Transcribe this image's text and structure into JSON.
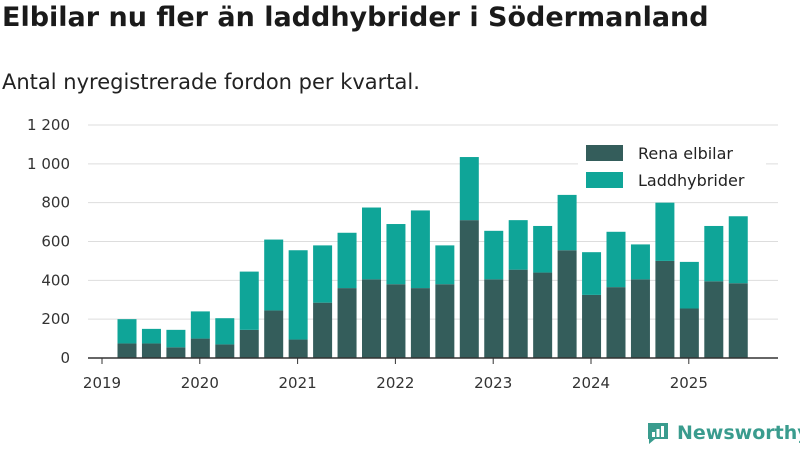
{
  "title": "Elbilar nu fler än laddhybrider i Södermanland",
  "subtitle": "Antal nyregistrerade fordon per kvartal.",
  "brand": {
    "name": "Newsworthy"
  },
  "colors": {
    "electric": "#345d5b",
    "hybrid": "#0fa598",
    "grid": "#dddddd",
    "axis": "#333333",
    "brand": "#3a9c8e"
  },
  "chart_data": {
    "type": "bar",
    "stacked": true,
    "x_tick_labels": [
      "2019",
      "2020",
      "2021",
      "2022",
      "2023",
      "2024",
      "2025"
    ],
    "y_ticks": [
      0,
      200,
      400,
      600,
      800,
      1000,
      1200
    ],
    "y_tick_labels": [
      "0",
      "200",
      "400",
      "600",
      "800",
      "1 000",
      "1 200"
    ],
    "ylim": [
      0,
      1200
    ],
    "grid": true,
    "legend_position": "top-right",
    "categories": [
      "2019 Q2",
      "2019 Q3",
      "2019 Q4",
      "2020 Q1",
      "2020 Q2",
      "2020 Q3",
      "2020 Q4",
      "2021 Q1",
      "2021 Q2",
      "2021 Q3",
      "2021 Q4",
      "2022 Q1",
      "2022 Q2",
      "2022 Q3",
      "2022 Q4",
      "2023 Q1",
      "2023 Q2",
      "2023 Q3",
      "2023 Q4",
      "2024 Q1",
      "2024 Q2",
      "2024 Q3",
      "2024 Q4",
      "2025 Q1",
      "2025 Q2",
      "2025 Q3"
    ],
    "series": [
      {
        "name": "Rena elbilar",
        "values": [
          75,
          75,
          55,
          100,
          70,
          145,
          245,
          95,
          285,
          360,
          405,
          380,
          360,
          380,
          710,
          405,
          455,
          440,
          555,
          325,
          365,
          405,
          500,
          255,
          395,
          385
        ]
      },
      {
        "name": "Laddhybrider",
        "values": [
          125,
          75,
          90,
          140,
          135,
          300,
          365,
          460,
          295,
          285,
          370,
          310,
          400,
          200,
          325,
          250,
          255,
          240,
          285,
          220,
          285,
          180,
          300,
          240,
          285,
          345
        ]
      }
    ]
  }
}
